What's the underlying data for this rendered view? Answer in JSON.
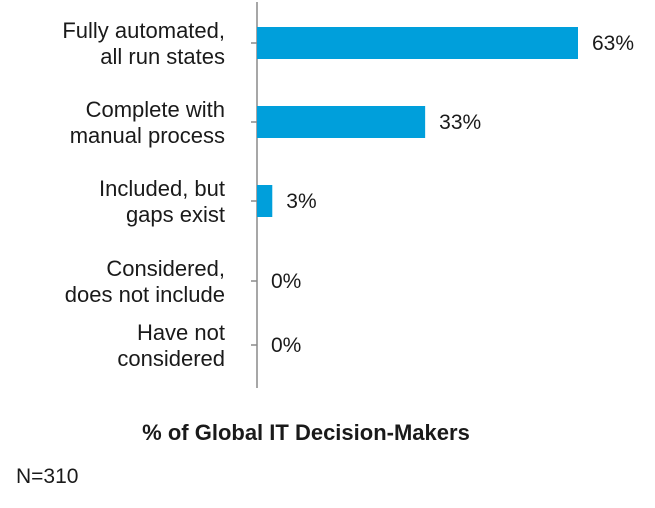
{
  "chart_data": {
    "type": "bar",
    "orientation": "horizontal",
    "categories": [
      [
        "Fully automated,",
        "all run states"
      ],
      [
        "Complete with",
        "manual process"
      ],
      [
        "Included, but",
        "gaps exist"
      ],
      [
        "Considered,",
        "does not include"
      ],
      [
        "Have not",
        "considered"
      ]
    ],
    "values": [
      63,
      33,
      3,
      0,
      0
    ],
    "value_labels": [
      "63%",
      "33%",
      "3%",
      "0%",
      "0%"
    ],
    "xlabel": "% of Global IT Decision-Makers",
    "xlim": [
      0,
      63
    ],
    "grid": false,
    "legend": "none",
    "bar_color": "#009fdb",
    "axis_color": "#8a8a8a"
  },
  "footnote": "N=310"
}
